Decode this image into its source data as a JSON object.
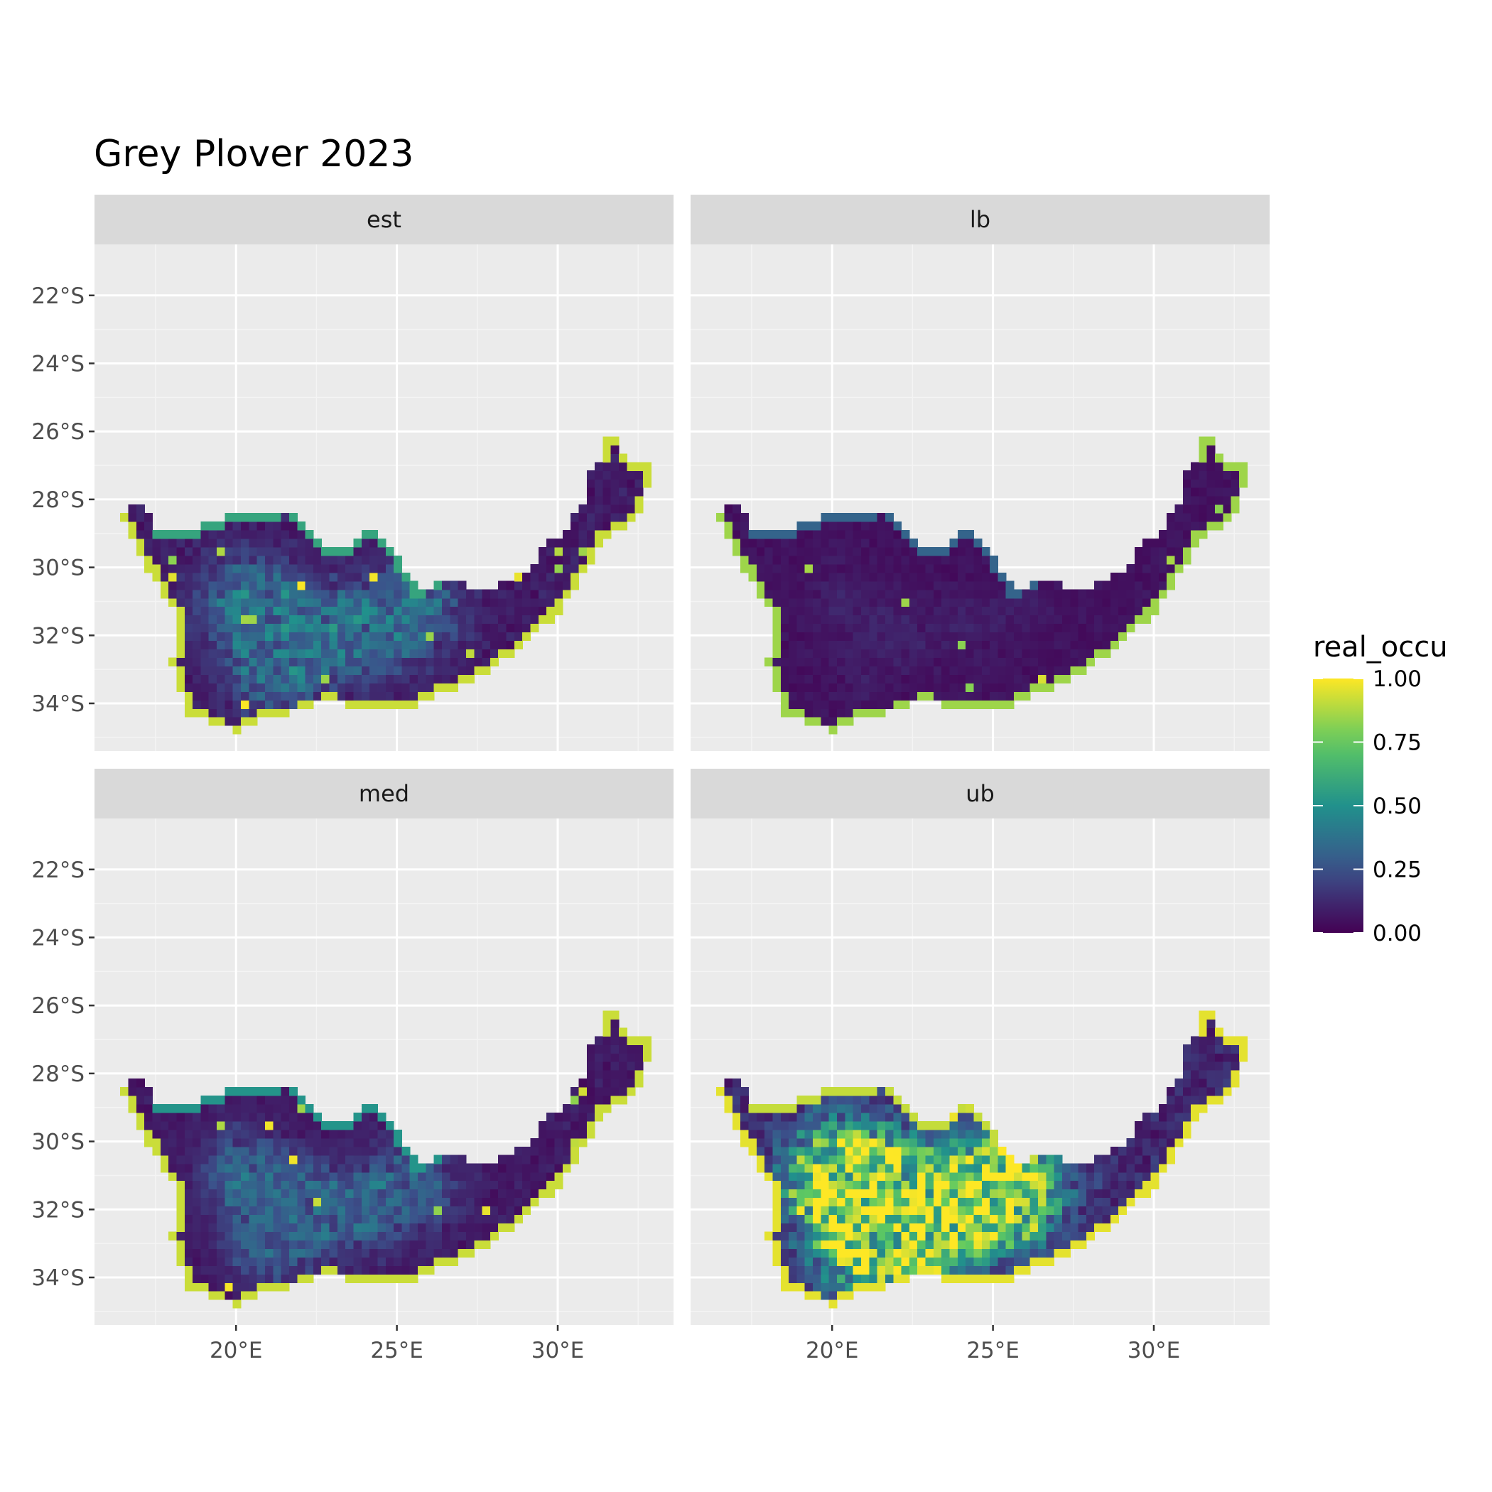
{
  "chart_data": {
    "type": "heatmap",
    "title": "Grey Plover 2023",
    "facets": [
      {
        "name": "est",
        "intensity": 0.28,
        "coast": 0.92,
        "hotspot": 0.35,
        "hotspot_spread": 0.9
      },
      {
        "name": "lb",
        "intensity": 0.06,
        "coast": 0.85,
        "hotspot": 0.05,
        "hotspot_spread": 0.6
      },
      {
        "name": "med",
        "intensity": 0.22,
        "coast": 0.92,
        "hotspot": 0.28,
        "hotspot_spread": 0.85
      },
      {
        "name": "ub",
        "intensity": 0.55,
        "coast": 0.96,
        "hotspot": 0.9,
        "hotspot_spread": 1.1
      }
    ],
    "x_ticks": [
      {
        "value": 20,
        "label": "20°E"
      },
      {
        "value": 25,
        "label": "25°E"
      },
      {
        "value": 30,
        "label": "30°E"
      }
    ],
    "y_ticks": [
      {
        "value": -22,
        "label": "22°S"
      },
      {
        "value": -24,
        "label": "24°S"
      },
      {
        "value": -26,
        "label": "26°S"
      },
      {
        "value": -28,
        "label": "28°S"
      },
      {
        "value": -30,
        "label": "30°S"
      },
      {
        "value": -32,
        "label": "32°S"
      },
      {
        "value": -34,
        "label": "34°S"
      }
    ],
    "xlim": [
      15.6,
      33.6
    ],
    "ylim": [
      -35.4,
      -20.5
    ],
    "legend": {
      "title": "real_occu",
      "position": "right",
      "breaks": [
        {
          "value": 1.0,
          "label": "1.00"
        },
        {
          "value": 0.75,
          "label": "0.75"
        },
        {
          "value": 0.5,
          "label": "0.50"
        },
        {
          "value": 0.25,
          "label": "0.25"
        },
        {
          "value": 0.0,
          "label": "0.00"
        }
      ],
      "range": [
        0,
        1
      ],
      "palette": [
        "#440154",
        "#3b528b",
        "#21918c",
        "#5ec962",
        "#fde725"
      ]
    },
    "outline": [
      [
        16.45,
        -28.6
      ],
      [
        16.9,
        -28.1
      ],
      [
        17.3,
        -28.3
      ],
      [
        17.5,
        -28.85
      ],
      [
        18.5,
        -28.9
      ],
      [
        19.2,
        -28.7
      ],
      [
        19.9,
        -28.45
      ],
      [
        20.7,
        -28.5
      ],
      [
        21.6,
        -28.3
      ],
      [
        22.2,
        -28.8
      ],
      [
        22.9,
        -29.55
      ],
      [
        23.6,
        -29.3
      ],
      [
        24.2,
        -28.85
      ],
      [
        24.8,
        -29.3
      ],
      [
        25.2,
        -30.1
      ],
      [
        25.6,
        -30.6
      ],
      [
        26.1,
        -30.55
      ],
      [
        26.45,
        -30.4
      ],
      [
        26.9,
        -29.95
      ],
      [
        27.2,
        -29.55
      ],
      [
        28.1,
        -28.8
      ],
      [
        28.85,
        -28.9
      ],
      [
        29.45,
        -29.4
      ],
      [
        29.2,
        -29.95
      ],
      [
        28.6,
        -30.4
      ],
      [
        27.8,
        -30.65
      ],
      [
        27.05,
        -30.3
      ],
      [
        27.2,
        -29.7
      ],
      [
        28.1,
        -28.9
      ],
      [
        28.85,
        -28.9
      ],
      [
        29.45,
        -29.4
      ],
      [
        30.15,
        -28.95
      ],
      [
        30.8,
        -28.2
      ],
      [
        30.85,
        -27.4
      ],
      [
        31.3,
        -26.8
      ],
      [
        31.5,
        -26.2
      ],
      [
        31.95,
        -25.95
      ],
      [
        32.05,
        -26.8
      ],
      [
        32.85,
        -26.85
      ],
      [
        32.75,
        -27.9
      ],
      [
        32.35,
        -28.6
      ],
      [
        31.4,
        -29.2
      ],
      [
        30.7,
        -30.35
      ],
      [
        30.05,
        -31.3
      ],
      [
        29.2,
        -32.05
      ],
      [
        28.2,
        -32.8
      ],
      [
        27.4,
        -33.3
      ],
      [
        26.4,
        -33.7
      ],
      [
        25.6,
        -34.05
      ],
      [
        24.9,
        -34.05
      ],
      [
        24.6,
        -34.15
      ],
      [
        23.6,
        -34.05
      ],
      [
        22.7,
        -33.95
      ],
      [
        21.9,
        -34.25
      ],
      [
        20.9,
        -34.4
      ],
      [
        20.0,
        -34.85
      ],
      [
        19.3,
        -34.6
      ],
      [
        18.8,
        -34.35
      ],
      [
        18.45,
        -34.3
      ],
      [
        18.35,
        -33.85
      ],
      [
        18.1,
        -33.15
      ],
      [
        17.9,
        -32.75
      ],
      [
        18.25,
        -32.25
      ],
      [
        18.2,
        -31.4
      ],
      [
        17.8,
        -30.9
      ],
      [
        17.2,
        -29.9
      ],
      [
        16.45,
        -28.6
      ]
    ]
  }
}
